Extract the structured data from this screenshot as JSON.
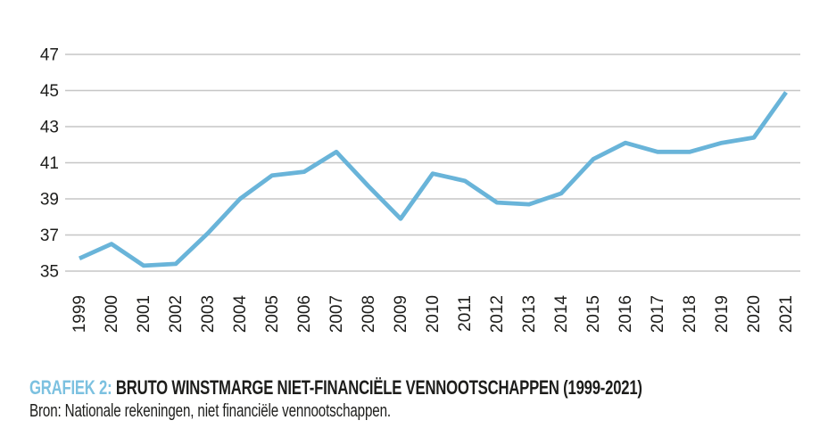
{
  "caption": {
    "label": "GRAFIEK 2:",
    "title": " BRUTO WINSTMARGE NIET-FINANCIËLE VENNOOTSCHAPPEN (1999-2021)",
    "source": "Bron: Nationale rekeningen, niet financiële vennootschappen."
  },
  "colors": {
    "line": "#69b4d9",
    "caption_label": "#7cc1e0",
    "text": "#1d1d1b",
    "gridline": "#c6c6c6"
  },
  "chart_data": {
    "type": "line",
    "title": "GRAFIEK 2: BRUTO WINSTMARGE NIET-FINANCIËLE VENNOOTSCHAPPEN (1999-2021)",
    "source": "Bron: Nationale rekeningen, niet financiële vennootschappen.",
    "x": [
      1999,
      2000,
      2001,
      2002,
      2003,
      2004,
      2005,
      2006,
      2007,
      2008,
      2009,
      2010,
      2011,
      2012,
      2013,
      2014,
      2015,
      2016,
      2017,
      2018,
      2019,
      2020,
      2021
    ],
    "series": [
      {
        "name": "bruto winstmarge",
        "values": [
          35.7,
          36.5,
          35.3,
          35.4,
          37.1,
          39.0,
          40.3,
          40.5,
          41.6,
          39.7,
          37.9,
          40.4,
          40.0,
          38.8,
          38.7,
          39.3,
          41.2,
          42.1,
          41.6,
          41.6,
          42.1,
          42.4,
          44.9
        ]
      }
    ],
    "ylim": [
      34,
      48
    ],
    "yticks": [
      35,
      37,
      39,
      41,
      43,
      45,
      47
    ],
    "grid": "horizontal",
    "legend": "none",
    "x_tick_rotation": -90
  }
}
